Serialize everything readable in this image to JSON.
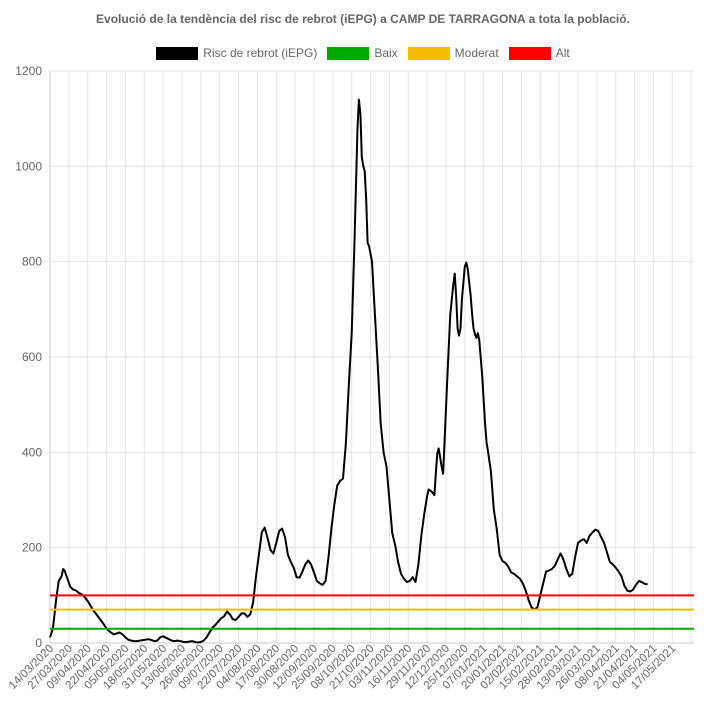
{
  "chart_data": {
    "type": "line",
    "title": "Evolució de la tendència del risc de rebrot (iEPG) a CAMP DE TARRAGONA a tota la població.",
    "xlabel": "",
    "ylabel": "",
    "ylim": [
      0,
      1200
    ],
    "yticks": [
      0,
      200,
      400,
      600,
      800,
      1000,
      1200
    ],
    "grid": true,
    "legend_position": "top",
    "x_tick_labels": [
      "14/03/2020",
      "27/03/2020",
      "09/04/2020",
      "22/04/2020",
      "05/05/2020",
      "18/05/2020",
      "31/05/2020",
      "13/06/2020",
      "26/06/2020",
      "09/07/2020",
      "22/07/2020",
      "04/08/2020",
      "17/08/2020",
      "30/08/2020",
      "12/09/2020",
      "25/09/2020",
      "08/10/2020",
      "21/10/2020",
      "03/11/2020",
      "16/11/2020",
      "29/11/2020",
      "12/12/2020",
      "25/12/2020",
      "07/01/2021",
      "20/01/2021",
      "02/02/2021",
      "15/02/2021",
      "28/02/2021",
      "13/03/2021",
      "26/03/2021",
      "08/04/2021",
      "21/04/2021",
      "04/05/2021",
      "17/05/2021"
    ],
    "x_range_days": [
      0,
      444
    ],
    "series": [
      {
        "name": "Risc de rebrot (iEPG)",
        "color": "#000000",
        "points": [
          [
            0,
            12
          ],
          [
            2,
            30
          ],
          [
            4,
            85
          ],
          [
            6,
            130
          ],
          [
            8,
            140
          ],
          [
            9,
            155
          ],
          [
            10,
            152
          ],
          [
            12,
            135
          ],
          [
            14,
            118
          ],
          [
            16,
            112
          ],
          [
            18,
            110
          ],
          [
            20,
            105
          ],
          [
            22,
            102
          ],
          [
            24,
            96
          ],
          [
            26,
            88
          ],
          [
            28,
            78
          ],
          [
            30,
            68
          ],
          [
            32,
            60
          ],
          [
            34,
            52
          ],
          [
            36,
            44
          ],
          [
            38,
            35
          ],
          [
            40,
            27
          ],
          [
            42,
            22
          ],
          [
            44,
            18
          ],
          [
            46,
            20
          ],
          [
            48,
            22
          ],
          [
            50,
            18
          ],
          [
            52,
            12
          ],
          [
            54,
            7
          ],
          [
            56,
            5
          ],
          [
            58,
            4
          ],
          [
            60,
            4
          ],
          [
            62,
            5
          ],
          [
            64,
            6
          ],
          [
            66,
            7
          ],
          [
            68,
            8
          ],
          [
            70,
            6
          ],
          [
            72,
            4
          ],
          [
            74,
            5
          ],
          [
            76,
            12
          ],
          [
            78,
            14
          ],
          [
            80,
            11
          ],
          [
            82,
            8
          ],
          [
            84,
            5
          ],
          [
            86,
            4
          ],
          [
            88,
            5
          ],
          [
            90,
            4
          ],
          [
            92,
            2
          ],
          [
            94,
            2
          ],
          [
            96,
            3
          ],
          [
            98,
            4
          ],
          [
            100,
            2
          ],
          [
            102,
            1
          ],
          [
            104,
            2
          ],
          [
            106,
            5
          ],
          [
            108,
            12
          ],
          [
            110,
            22
          ],
          [
            112,
            32
          ],
          [
            114,
            38
          ],
          [
            116,
            45
          ],
          [
            118,
            52
          ],
          [
            120,
            56
          ],
          [
            122,
            66
          ],
          [
            124,
            60
          ],
          [
            126,
            50
          ],
          [
            128,
            48
          ],
          [
            130,
            55
          ],
          [
            132,
            62
          ],
          [
            134,
            62
          ],
          [
            136,
            55
          ],
          [
            138,
            60
          ],
          [
            140,
            85
          ],
          [
            142,
            140
          ],
          [
            144,
            185
          ],
          [
            146,
            232
          ],
          [
            148,
            242
          ],
          [
            150,
            220
          ],
          [
            152,
            195
          ],
          [
            154,
            188
          ],
          [
            156,
            210
          ],
          [
            158,
            235
          ],
          [
            160,
            240
          ],
          [
            162,
            222
          ],
          [
            164,
            185
          ],
          [
            166,
            170
          ],
          [
            168,
            158
          ],
          [
            170,
            138
          ],
          [
            172,
            137
          ],
          [
            174,
            150
          ],
          [
            176,
            165
          ],
          [
            178,
            173
          ],
          [
            180,
            165
          ],
          [
            182,
            148
          ],
          [
            184,
            130
          ],
          [
            186,
            125
          ],
          [
            188,
            122
          ],
          [
            190,
            130
          ],
          [
            192,
            180
          ],
          [
            194,
            240
          ],
          [
            196,
            290
          ],
          [
            198,
            330
          ],
          [
            200,
            340
          ],
          [
            202,
            345
          ],
          [
            204,
            420
          ],
          [
            206,
            540
          ],
          [
            208,
            650
          ],
          [
            210,
            850
          ],
          [
            212,
            1080
          ],
          [
            213,
            1140
          ],
          [
            214,
            1110
          ],
          [
            215,
            1020
          ],
          [
            216,
            1000
          ],
          [
            217,
            990
          ],
          [
            218,
            930
          ],
          [
            219,
            840
          ],
          [
            220,
            832
          ],
          [
            222,
            800
          ],
          [
            224,
            690
          ],
          [
            226,
            580
          ],
          [
            228,
            460
          ],
          [
            230,
            400
          ],
          [
            232,
            370
          ],
          [
            234,
            300
          ],
          [
            236,
            230
          ],
          [
            238,
            205
          ],
          [
            240,
            170
          ],
          [
            242,
            145
          ],
          [
            244,
            135
          ],
          [
            246,
            128
          ],
          [
            248,
            130
          ],
          [
            250,
            138
          ],
          [
            252,
            128
          ],
          [
            254,
            165
          ],
          [
            256,
            225
          ],
          [
            258,
            270
          ],
          [
            260,
            308
          ],
          [
            261,
            322
          ],
          [
            263,
            318
          ],
          [
            265,
            310
          ],
          [
            266,
            355
          ],
          [
            267,
            398
          ],
          [
            268,
            408
          ],
          [
            270,
            370
          ],
          [
            271,
            355
          ],
          [
            272,
            420
          ],
          [
            274,
            560
          ],
          [
            276,
            690
          ],
          [
            278,
            750
          ],
          [
            279,
            775
          ],
          [
            280,
            730
          ],
          [
            281,
            660
          ],
          [
            282,
            645
          ],
          [
            283,
            660
          ],
          [
            284,
            720
          ],
          [
            286,
            790
          ],
          [
            287,
            798
          ],
          [
            288,
            785
          ],
          [
            290,
            730
          ],
          [
            291,
            690
          ],
          [
            292,
            660
          ],
          [
            293,
            648
          ],
          [
            294,
            640
          ],
          [
            295,
            650
          ],
          [
            296,
            635
          ],
          [
            298,
            560
          ],
          [
            300,
            460
          ],
          [
            301,
            420
          ],
          [
            302,
            402
          ],
          [
            304,
            360
          ],
          [
            306,
            280
          ],
          [
            308,
            240
          ],
          [
            310,
            185
          ],
          [
            312,
            172
          ],
          [
            314,
            168
          ],
          [
            316,
            160
          ],
          [
            318,
            148
          ],
          [
            320,
            145
          ],
          [
            322,
            140
          ],
          [
            324,
            135
          ],
          [
            326,
            125
          ],
          [
            328,
            110
          ],
          [
            330,
            90
          ],
          [
            332,
            75
          ],
          [
            334,
            70
          ],
          [
            336,
            75
          ],
          [
            338,
            100
          ],
          [
            340,
            125
          ],
          [
            342,
            150
          ],
          [
            344,
            152
          ],
          [
            346,
            155
          ],
          [
            348,
            162
          ],
          [
            350,
            175
          ],
          [
            352,
            188
          ],
          [
            354,
            175
          ],
          [
            356,
            155
          ],
          [
            358,
            140
          ],
          [
            360,
            145
          ],
          [
            362,
            180
          ],
          [
            364,
            210
          ],
          [
            366,
            215
          ],
          [
            368,
            218
          ],
          [
            370,
            210
          ],
          [
            372,
            225
          ],
          [
            374,
            232
          ],
          [
            376,
            238
          ],
          [
            378,
            235
          ],
          [
            380,
            222
          ],
          [
            382,
            210
          ],
          [
            384,
            190
          ],
          [
            386,
            170
          ],
          [
            388,
            165
          ],
          [
            390,
            158
          ],
          [
            392,
            150
          ],
          [
            394,
            140
          ],
          [
            396,
            120
          ],
          [
            398,
            110
          ],
          [
            400,
            108
          ],
          [
            402,
            112
          ],
          [
            404,
            122
          ],
          [
            406,
            130
          ],
          [
            408,
            128
          ],
          [
            410,
            124
          ],
          [
            412,
            123
          ]
        ]
      },
      {
        "name": "Baix",
        "color": "#00aa00",
        "constant": 30
      },
      {
        "name": "Moderat",
        "color": "#f5bf00",
        "constant": 70
      },
      {
        "name": "Alt",
        "color": "#ff0000",
        "constant": 100
      }
    ]
  }
}
